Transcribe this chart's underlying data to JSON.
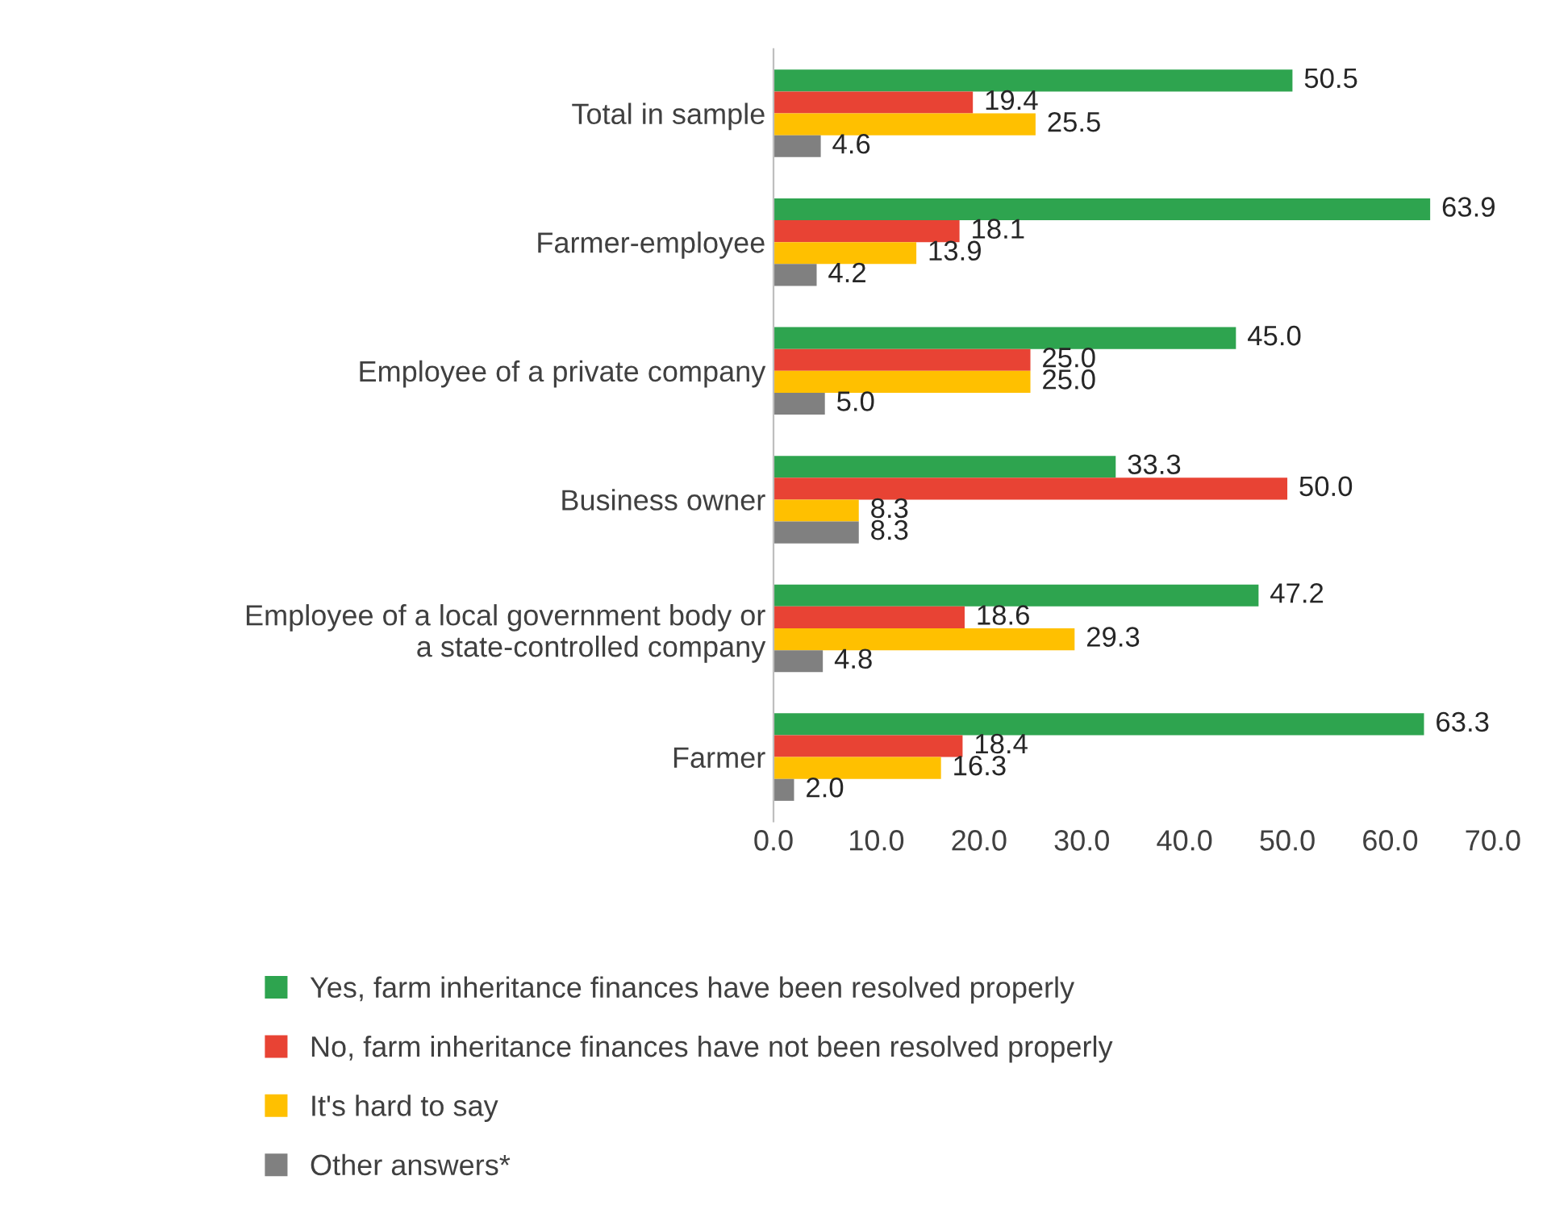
{
  "chart_data": {
    "type": "bar",
    "orientation": "horizontal",
    "categories": [
      "Total in sample",
      "Farmer-employee",
      "Employee of a private company",
      "Business owner",
      "Employee of a local government body or\na state-controlled company",
      "Farmer"
    ],
    "series": [
      {
        "name": "Yes, farm inheritance finances have been resolved properly",
        "color": "#2ea44f",
        "values": [
          50.5,
          63.9,
          45.0,
          33.3,
          47.2,
          63.3
        ],
        "value_labels": [
          "50.5",
          "63.9",
          "45.0",
          "33.3",
          "47.2",
          "63.3"
        ]
      },
      {
        "name": "No, farm inheritance finances have not been resolved properly",
        "color": "#e84334",
        "values": [
          19.4,
          18.1,
          25.0,
          50.0,
          18.6,
          18.4
        ],
        "value_labels": [
          "19.4",
          "18.1",
          "25.0",
          "50.0",
          "18.6",
          "18.4"
        ]
      },
      {
        "name": "It's hard to say",
        "color": "#ffc000",
        "values": [
          25.5,
          13.9,
          25.0,
          8.3,
          29.3,
          16.3
        ],
        "value_labels": [
          "25.5",
          "13.9",
          "25.0",
          "8.3",
          "29.3",
          "16.3"
        ]
      },
      {
        "name": "Other answers*",
        "color": "#808080",
        "values": [
          4.6,
          4.2,
          5.0,
          8.3,
          4.8,
          2.0
        ],
        "value_labels": [
          "4.6",
          "4.2",
          "5.0",
          "8.3",
          "4.8",
          "2.0"
        ]
      }
    ],
    "xlim": [
      0,
      70
    ],
    "xticks": [
      {
        "value": 0,
        "label": "0.0"
      },
      {
        "value": 10,
        "label": "10.0"
      },
      {
        "value": 20,
        "label": "20.0"
      },
      {
        "value": 30,
        "label": "30.0"
      },
      {
        "value": 40,
        "label": "40.0"
      },
      {
        "value": 50,
        "label": "50.0"
      },
      {
        "value": 60,
        "label": "60.0"
      },
      {
        "value": 70,
        "label": "70.0"
      }
    ],
    "grid": false,
    "legend": "bottom"
  }
}
